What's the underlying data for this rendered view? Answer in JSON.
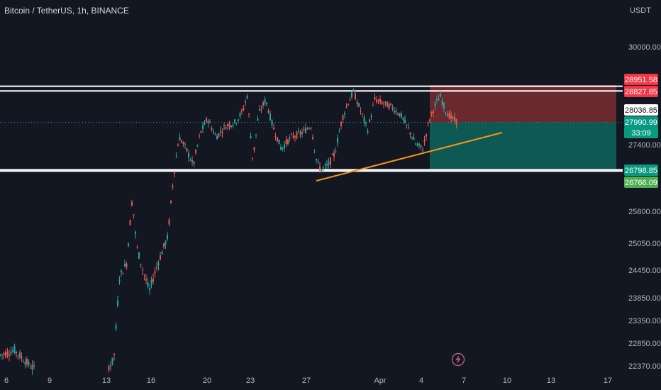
{
  "header": {
    "symbol_title": "Bitcoin / TetherUS, 1h, BINANCE",
    "currency_label": "USDT"
  },
  "colors": {
    "background": "#131722",
    "up_candle": "#26a69a",
    "down_candle": "#ef5350",
    "trend_line": "#f7931a",
    "level_line": "#ffffff",
    "stop_zone": "#7a2d31",
    "target_zone": "#10615a"
  },
  "icons": {
    "events": "lightning-icon"
  },
  "chart_data": {
    "type": "candlestick",
    "symbol": "Bitcoin / TetherUS",
    "interval": "1h",
    "exchange": "BINANCE",
    "currency": "USDT",
    "y_tick_labels": [
      "30000.00",
      "27400.00",
      "25800.00",
      "25050.00",
      "24450.00",
      "23850.00",
      "23350.00",
      "22850.00",
      "22370.00"
    ],
    "x_tick_labels": [
      "6",
      "9",
      "13",
      "16",
      "20",
      "23",
      "27",
      "Apr",
      "4",
      "7",
      "10",
      "13",
      "17"
    ],
    "horizontal_levels": [
      28951.58,
      28827.85,
      26798.85,
      26766.09
    ],
    "price_tags": [
      {
        "label": "28951.58",
        "kind": "stop-level",
        "color": "#f23645"
      },
      {
        "label": "28827.85",
        "kind": "stop-level",
        "color": "#f23645"
      },
      {
        "label": "28036.85",
        "kind": "crosshair",
        "color": "#ffffff"
      },
      {
        "label": "27990.99",
        "kind": "last-price",
        "color": "#089981"
      },
      {
        "label": "33:09",
        "kind": "countdown",
        "color": "#089981"
      },
      {
        "label": "26798.85",
        "kind": "target-level",
        "color": "#089981"
      },
      {
        "label": "26766.09",
        "kind": "target-level",
        "color": "#4caf50"
      }
    ],
    "position": {
      "type": "short",
      "entry": 27990.99,
      "stop": 28951.58,
      "target": 26798.85
    },
    "trend_line": {
      "from_label": "27",
      "from_price": 26520,
      "to_label": "7",
      "to_price": 27560
    }
  }
}
